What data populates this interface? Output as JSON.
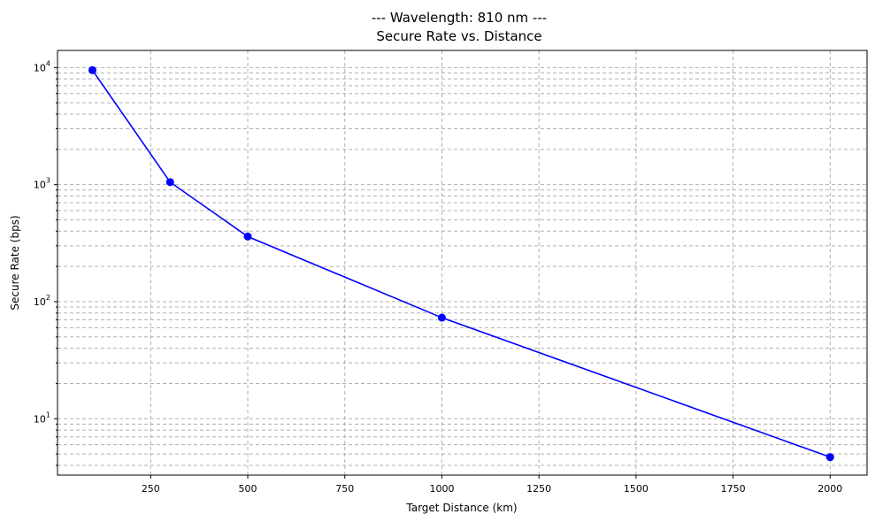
{
  "chart_data": {
    "type": "line",
    "title_line1": "--- Wavelength: 810 nm ---",
    "title_line2": "Secure Rate vs. Distance",
    "xlabel": "Target Distance (km)",
    "ylabel": "Secure Rate (bps)",
    "x_ticks": [
      250,
      500,
      750,
      1000,
      1250,
      1500,
      1750,
      2000
    ],
    "x_tick_labels": [
      "250",
      "500",
      "750",
      "1000",
      "1250",
      "1500",
      "1750",
      "2000"
    ],
    "y_scale": "log",
    "y_major_ticks": [
      10,
      100,
      1000,
      10000
    ],
    "y_tick_labels": [
      {
        "base": "10",
        "exp": "1"
      },
      {
        "base": "10",
        "exp": "2"
      },
      {
        "base": "10",
        "exp": "3"
      },
      {
        "base": "10",
        "exp": "4"
      }
    ],
    "xlim": [
      10,
      2095
    ],
    "ylim": [
      3.3,
      14000
    ],
    "grid": true,
    "grid_style": "dashed",
    "series": [
      {
        "color": "#0000ff",
        "marker": "circle",
        "x": [
          100,
          300,
          500,
          1000,
          2000
        ],
        "y": [
          9500,
          1050,
          360,
          73,
          4.7
        ]
      }
    ]
  }
}
